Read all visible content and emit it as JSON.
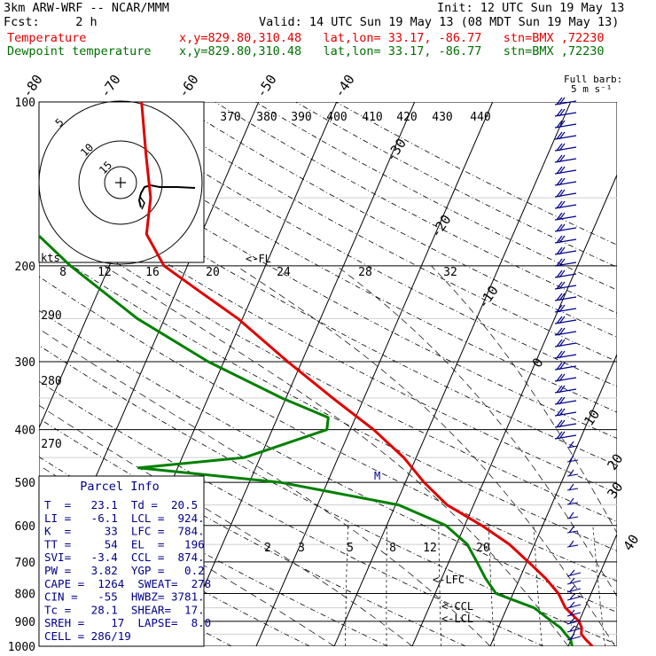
{
  "header": {
    "model": "3km ARW-WRF -- NCAR/MMM",
    "init": "Init: 12 UTC Sun 19 May 13",
    "fcst": "Fcst:     2 h",
    "valid": "Valid: 14 UTC Sun 19 May 13 (08 MDT Sun 19 May 13)",
    "temp_label": "Temperature",
    "temp_loc": "x,y=829.80,310.48   lat,lon= 33.17, -86.77   stn=BMX ,72230",
    "dew_label": "Dewpoint temperature",
    "dew_loc": "x,y=829.80,310.48   lat,lon= 33.17, -86.77   stn=BMX ,72230"
  },
  "chart_data": {
    "type": "line",
    "pressure_levels": [
      "100",
      "200",
      "300",
      "400",
      "500",
      "600",
      "700",
      "800",
      "900",
      "1000"
    ],
    "isotherm_labels": [
      "-80",
      "-70",
      "-60",
      "-50",
      "-40",
      "-30",
      "-20",
      "-10",
      "0",
      "10",
      "20",
      "30",
      "40"
    ],
    "theta_labels": [
      "370",
      "380",
      "390",
      "400",
      "410",
      "420",
      "430",
      "440"
    ],
    "theta_left_labels": [
      "290",
      "280",
      "270"
    ],
    "mixing_ratio_labels": [
      "2",
      "3",
      "5",
      "8",
      "12",
      "20"
    ],
    "hodograph_speed_labels": [
      "8",
      "12",
      "16",
      "20",
      "24",
      "28",
      "32"
    ],
    "hodograph_units": "kts",
    "hodograph_rings": [
      "5",
      "10",
      "15"
    ],
    "barb_title": "Full barb:",
    "barb_units": "5 m s⁻¹",
    "markers": {
      "fl": "<-FL",
      "m": "M",
      "lfc": "<-LFC",
      "ccl": "<-CCL",
      "lcl": "<-LCL"
    },
    "series": [
      {
        "name": "Temperature",
        "color": "#e00000",
        "points": [
          [
            1000,
            23.1
          ],
          [
            975,
            22.0
          ],
          [
            950,
            21.0
          ],
          [
            925,
            20.7
          ],
          [
            900,
            20.0
          ],
          [
            850,
            17.5
          ],
          [
            800,
            15.8
          ],
          [
            750,
            13.3
          ],
          [
            700,
            10.2
          ],
          [
            650,
            6.8
          ],
          [
            600,
            2.2
          ],
          [
            550,
            -3.4
          ],
          [
            500,
            -7.6
          ],
          [
            450,
            -11.6
          ],
          [
            400,
            -17.0
          ],
          [
            350,
            -24.0
          ],
          [
            300,
            -31.8
          ],
          [
            250,
            -40.6
          ],
          [
            225,
            -46.5
          ],
          [
            200,
            -53.0
          ],
          [
            175,
            -57.0
          ],
          [
            150,
            -58.5
          ],
          [
            125,
            -61.5
          ],
          [
            100,
            -65.0
          ]
        ]
      },
      {
        "name": "Dewpoint temperature",
        "color": "#008000",
        "points": [
          [
            1000,
            20.5
          ],
          [
            975,
            20.0
          ],
          [
            950,
            19.0
          ],
          [
            925,
            18.0
          ],
          [
            900,
            16.5
          ],
          [
            850,
            13.5
          ],
          [
            800,
            7.8
          ],
          [
            750,
            5.6
          ],
          [
            700,
            3.6
          ],
          [
            650,
            1.4
          ],
          [
            600,
            -2.4
          ],
          [
            550,
            -9.6
          ],
          [
            500,
            -26.0
          ],
          [
            470,
            -45.0
          ],
          [
            450,
            -32.0
          ],
          [
            400,
            -23.0
          ],
          [
            380,
            -23.5
          ],
          [
            350,
            -30.5
          ],
          [
            300,
            -42.0
          ],
          [
            250,
            -53.5
          ],
          [
            200,
            -65.0
          ],
          [
            175,
            -71.0
          ],
          [
            150,
            -75.0
          ],
          [
            125,
            -79.0
          ],
          [
            100,
            -84.0
          ]
        ]
      }
    ]
  },
  "parcel_info": {
    "title": "Parcel Info",
    "rows": [
      "T  =   23.1  Td =  20.5",
      "LI =   -6.1  LCL =  924.",
      "K  =     33  LFC =  784.",
      "TT =     54  EL  =   196",
      "SVI=   -3.4  CCL =  874.",
      "PW =   3.82  YGP =   0.2",
      "CAPE =  1264  SWEAT=  278",
      "CIN =   -55  HWBZ= 3781.",
      "Tc =   28.1  SHEAR=  17.",
      "SREH =    17  LAPSE=  8.0",
      "CELL = 286/19"
    ]
  }
}
